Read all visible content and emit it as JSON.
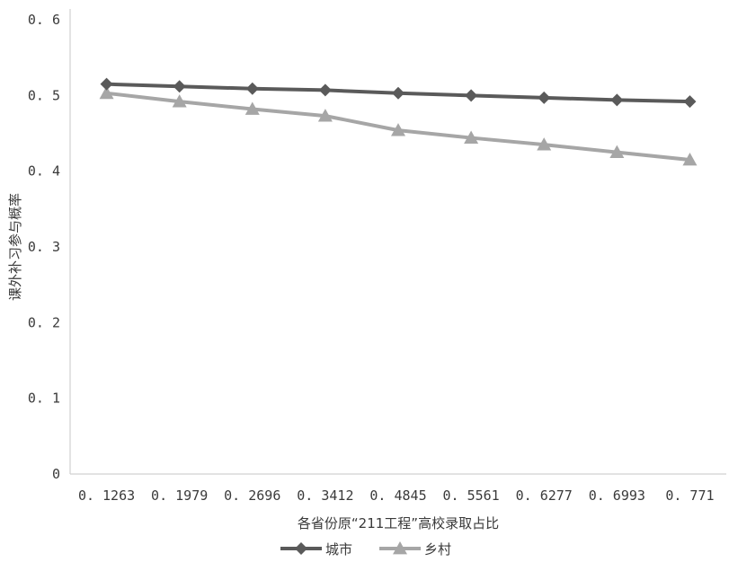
{
  "chart_data": {
    "type": "line",
    "categories": [
      "0. 1263",
      "0. 1979",
      "0. 2696",
      "0. 3412",
      "0. 4845",
      "0. 5561",
      "0. 6277",
      "0. 6993",
      "0. 771"
    ],
    "series": [
      {
        "name": "城市",
        "values": [
          0.515,
          0.512,
          0.509,
          0.507,
          0.503,
          0.5,
          0.497,
          0.494,
          0.492
        ],
        "color": "#5a5a5a",
        "marker": "diamond"
      },
      {
        "name": "乡村",
        "values": [
          0.503,
          0.492,
          0.482,
          0.473,
          0.454,
          0.444,
          0.435,
          0.425,
          0.415
        ],
        "color": "#a6a6a6",
        "marker": "triangle"
      }
    ],
    "xlabel": "各省份原“211工程”高校录取占比",
    "ylabel": "课外补习参与概率",
    "ylim": [
      0,
      0.6
    ],
    "yticks": [
      "0",
      "0. 1",
      "0. 2",
      "0. 3",
      "0. 4",
      "0. 5",
      "0. 6"
    ],
    "grid": false,
    "legend": "bottom-center"
  }
}
